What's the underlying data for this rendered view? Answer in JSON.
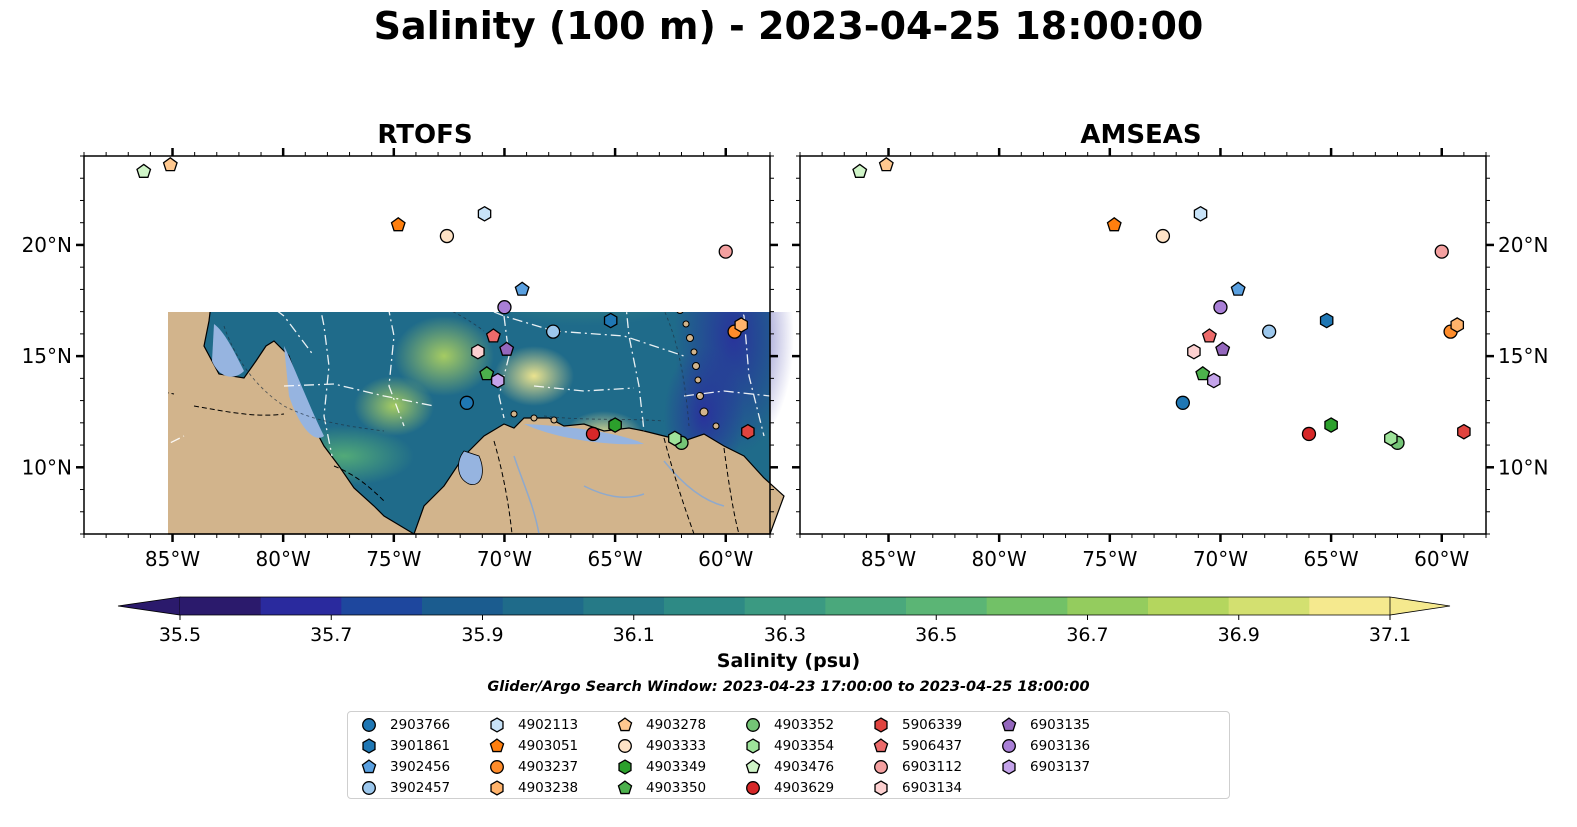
{
  "title": "Salinity (100 m) - 2023-04-25 18:00:00",
  "panels": [
    {
      "title": "RTOFS",
      "key": "rtofs"
    },
    {
      "title": "AMSEAS",
      "key": "amseas"
    }
  ],
  "map": {
    "lon_range": [
      -89,
      -58
    ],
    "lat_range": [
      7,
      24
    ],
    "lon_ticks": [
      {
        "value": -85,
        "label": "85°W"
      },
      {
        "value": -80,
        "label": "80°W"
      },
      {
        "value": -75,
        "label": "75°W"
      },
      {
        "value": -70,
        "label": "70°W"
      },
      {
        "value": -65,
        "label": "65°W"
      },
      {
        "value": -60,
        "label": "60°W"
      }
    ],
    "lat_ticks": [
      {
        "value": 10,
        "label": "10°N"
      },
      {
        "value": 15,
        "label": "15°N"
      },
      {
        "value": 20,
        "label": "20°N"
      }
    ],
    "colors": {
      "land": "#d2b48c",
      "shelf": "#96b4e0",
      "coast": "#000000",
      "eez": "#ffffff"
    }
  },
  "colorbar": {
    "label": "Salinity (psu)",
    "min": 35.5,
    "max": 37.1,
    "ticks": [
      "35.5",
      "35.7",
      "35.9",
      "36.1",
      "36.3",
      "36.5",
      "36.7",
      "36.9",
      "37.1"
    ],
    "colors": [
      "#2b1a6c",
      "#2a2a9e",
      "#1e479e",
      "#1b5c8f",
      "#1f6b8a",
      "#267a87",
      "#2e8a85",
      "#3b9a82",
      "#4aa87c",
      "#5bb575",
      "#72c167",
      "#94cc5e",
      "#b4d65e",
      "#d3e070",
      "#f5e98e"
    ]
  },
  "search_window": "Glider/Argo Search Window: 2023-04-23 17:00:00 to 2023-04-25 18:00:00",
  "floats": [
    {
      "id": "2903766",
      "marker": "circle",
      "color": "#1f77b4",
      "lon": -71.7,
      "lat": 12.9
    },
    {
      "id": "3901861",
      "marker": "hexagon",
      "color": "#1f77b4",
      "lon": -65.2,
      "lat": 16.6
    },
    {
      "id": "3902456",
      "marker": "pentagon",
      "color": "#5aa0e0",
      "lon": -69.2,
      "lat": 18.0
    },
    {
      "id": "3902457",
      "marker": "circle",
      "color": "#9cc7ec",
      "lon": -67.8,
      "lat": 16.1
    },
    {
      "id": "4902113",
      "marker": "hexagon",
      "color": "#c8e3f8",
      "lon": -70.9,
      "lat": 21.4
    },
    {
      "id": "4903051",
      "marker": "pentagon",
      "color": "#ff7f0e",
      "lon": -74.8,
      "lat": 20.9
    },
    {
      "id": "4903237",
      "marker": "circle",
      "color": "#ff8c2a",
      "lon": -59.6,
      "lat": 16.1
    },
    {
      "id": "4903238",
      "marker": "hexagon",
      "color": "#ffb36b",
      "lon": -59.3,
      "lat": 16.4
    },
    {
      "id": "4903278",
      "marker": "pentagon",
      "color": "#ffc88f",
      "lon": -85.1,
      "lat": 23.6
    },
    {
      "id": "4903333",
      "marker": "circle",
      "color": "#ffe3c6",
      "lon": -72.6,
      "lat": 20.4
    },
    {
      "id": "4903349",
      "marker": "hexagon",
      "color": "#2ca02c",
      "lon": -65.0,
      "lat": 11.9
    },
    {
      "id": "4903350",
      "marker": "pentagon",
      "color": "#4cb04c",
      "lon": -70.8,
      "lat": 14.2
    },
    {
      "id": "4903352",
      "marker": "circle",
      "color": "#74c476",
      "lon": -62.0,
      "lat": 11.1
    },
    {
      "id": "4903354",
      "marker": "hexagon",
      "color": "#9ee39a",
      "lon": -62.3,
      "lat": 11.3
    },
    {
      "id": "4903476",
      "marker": "pentagon",
      "color": "#d0f5c8",
      "lon": -86.3,
      "lat": 23.3
    },
    {
      "id": "4903629",
      "marker": "circle",
      "color": "#d62728",
      "lon": -66.0,
      "lat": 11.5
    },
    {
      "id": "5906339",
      "marker": "hexagon",
      "color": "#e0443f",
      "lon": -59.0,
      "lat": 11.6
    },
    {
      "id": "5906437",
      "marker": "pentagon",
      "color": "#ec6a6a",
      "lon": -70.5,
      "lat": 15.9
    },
    {
      "id": "6903112",
      "marker": "circle",
      "color": "#f4a0a0",
      "lon": -60.0,
      "lat": 19.7
    },
    {
      "id": "6903134",
      "marker": "hexagon",
      "color": "#fcd0d0",
      "lon": -71.2,
      "lat": 15.2
    },
    {
      "id": "6903135",
      "marker": "pentagon",
      "color": "#9467bd",
      "lon": -69.9,
      "lat": 15.3
    },
    {
      "id": "6903136",
      "marker": "circle",
      "color": "#a97fd6",
      "lon": -70.0,
      "lat": 17.2
    },
    {
      "id": "6903137",
      "marker": "hexagon",
      "color": "#c4a3ea",
      "lon": -70.3,
      "lat": 13.9
    }
  ]
}
